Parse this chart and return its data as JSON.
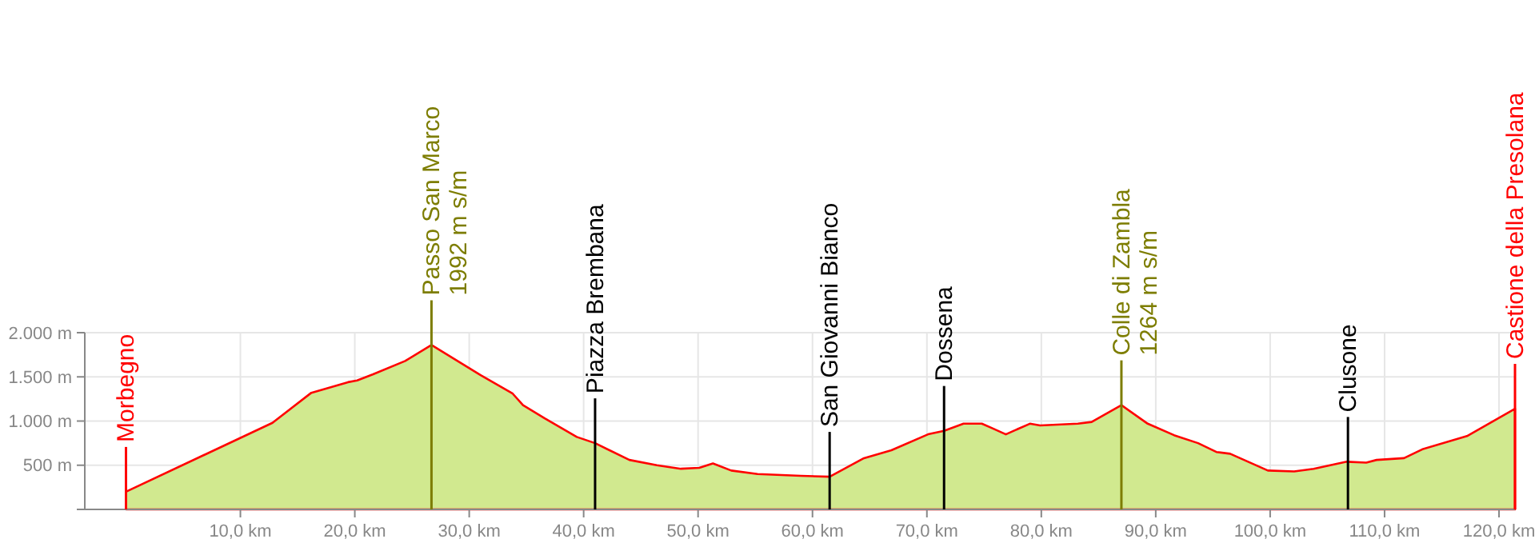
{
  "chart_data": {
    "type": "area",
    "x": [
      0,
      12.8,
      16.2,
      19.4,
      20.2,
      21.6,
      24.4,
      26.7,
      31.0,
      33.8,
      34.7,
      36.6,
      39.4,
      41.0,
      44.0,
      46.4,
      48.5,
      50.1,
      51.3,
      52.9,
      55.2,
      59.0,
      61.5,
      64.5,
      66.9,
      70.1,
      71.5,
      73.2,
      74.8,
      75.7,
      76.9,
      79.0,
      79.9,
      83.2,
      84.4,
      87.0,
      89.3,
      91.6,
      93.7,
      95.3,
      96.5,
      99.8,
      102.1,
      103.8,
      106.7,
      108.4,
      109.3,
      111.7,
      113.3,
      117.2,
      121.4
    ],
    "series": [
      {
        "color": "#d1e98f",
        "values": [
          200,
          980,
          1320,
          1440,
          1460,
          1530,
          1680,
          1860,
          1520,
          1310,
          1180,
          1030,
          820,
          750,
          560,
          500,
          460,
          470,
          520,
          440,
          400,
          380,
          370,
          580,
          670,
          850,
          890,
          970,
          970,
          920,
          850,
          970,
          950,
          970,
          990,
          1180,
          970,
          840,
          750,
          650,
          630,
          440,
          430,
          460,
          540,
          530,
          560,
          580,
          680,
          830,
          1140
        ]
      }
    ],
    "xlim": [
      -3.6,
      121.4
    ],
    "ylim": [
      0,
      2000
    ],
    "xticks": [
      {
        "value": 10,
        "label": "10,0 km"
      },
      {
        "value": 20,
        "label": "20,0 km"
      },
      {
        "value": 30,
        "label": "30,0 km"
      },
      {
        "value": 40,
        "label": "40,0 km"
      },
      {
        "value": 50,
        "label": "50,0 km"
      },
      {
        "value": 60,
        "label": "60,0 km"
      },
      {
        "value": 70,
        "label": "70,0 km"
      },
      {
        "value": 80,
        "label": "80,0 km"
      },
      {
        "value": 90,
        "label": "90,0 km"
      },
      {
        "value": 100,
        "label": "100,0 km"
      },
      {
        "value": 110,
        "label": "110,0 km"
      },
      {
        "value": 120,
        "label": "120,0 km"
      }
    ],
    "yticks": [
      {
        "value": 0,
        "label": null
      },
      {
        "value": 500,
        "label": "500 m"
      },
      {
        "value": 1000,
        "label": "1.000 m"
      },
      {
        "value": 1500,
        "label": "1.500 m"
      },
      {
        "value": 2000,
        "label": "2.000 m"
      }
    ],
    "grid": true,
    "ref_lines": [
      {
        "axis": "x",
        "value": 0,
        "label": "Morbegno",
        "color": "#ff0000"
      },
      {
        "axis": "x",
        "value": 26.7,
        "label": "Passo San Marco\n1992 m s/m",
        "color": "#7d7d00"
      },
      {
        "axis": "x",
        "value": 41.0,
        "label": "Piazza Brembana",
        "color": "#000000"
      },
      {
        "axis": "x",
        "value": 61.5,
        "label": "San Giovanni Bianco",
        "color": "#000000"
      },
      {
        "axis": "x",
        "value": 71.5,
        "label": "Dossena",
        "color": "#000000"
      },
      {
        "axis": "x",
        "value": 87.0,
        "label": "Colle di Zambla\n1264 m s/m",
        "color": "#7d7d00"
      },
      {
        "axis": "x",
        "value": 106.8,
        "label": "Clusone",
        "color": "#000000"
      },
      {
        "axis": "x",
        "value": 121.4,
        "label": "Castione della Presolana",
        "color": "#ff0000"
      }
    ]
  }
}
